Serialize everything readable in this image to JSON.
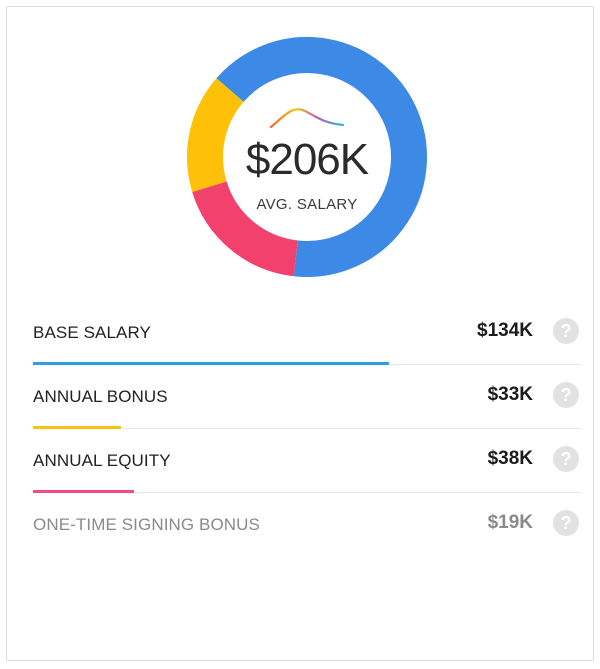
{
  "summary": {
    "value": "$206K",
    "label": "AVG. SALARY"
  },
  "donut": {
    "total": 206,
    "segments": [
      {
        "key": "base_salary",
        "value": 134,
        "color": "#3d8ae6"
      },
      {
        "key": "annual_equity",
        "value": 38,
        "color": "#f3416e"
      },
      {
        "key": "annual_bonus",
        "value": 33,
        "color": "#ffc107"
      }
    ]
  },
  "breakdown": [
    {
      "label": "BASE SALARY",
      "value": "$134K",
      "amount": 134,
      "bar_color": "#2b9fe0",
      "muted": false
    },
    {
      "label": "ANNUAL BONUS",
      "value": "$33K",
      "amount": 33,
      "bar_color": "#f5c40e",
      "muted": false
    },
    {
      "label": "ANNUAL EQUITY",
      "value": "$38K",
      "amount": 38,
      "bar_color": "#f14c7c",
      "muted": false
    },
    {
      "label": "ONE-TIME SIGNING BONUS",
      "value": "$19K",
      "amount": 19,
      "bar_color": null,
      "muted": true
    }
  ],
  "help_icon": {
    "name": "help-icon",
    "glyph": "?"
  },
  "bar_scale_max": 206
}
